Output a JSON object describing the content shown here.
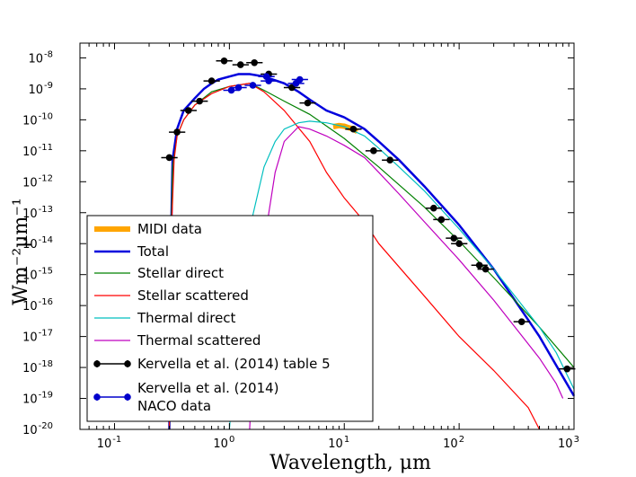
{
  "chart_data": {
    "type": "line",
    "xscale": "log",
    "yscale": "log",
    "xlim": [
      0.05,
      1000
    ],
    "ylim": [
      1e-20,
      3e-08
    ],
    "xlabel": "Wavelength, μm",
    "ylabel": "Wm⁻²μm⁻¹",
    "x_ticks": [
      {
        "value": 0.1,
        "mant": "10",
        "exp": "-1"
      },
      {
        "value": 1,
        "mant": "10",
        "exp": "0"
      },
      {
        "value": 10,
        "mant": "10",
        "exp": "1"
      },
      {
        "value": 100,
        "mant": "10",
        "exp": "2"
      },
      {
        "value": 1000,
        "mant": "10",
        "exp": "3"
      }
    ],
    "y_ticks": [
      {
        "value": 1e-08,
        "mant": "10",
        "exp": "-8"
      },
      {
        "value": 1e-09,
        "mant": "10",
        "exp": "-9"
      },
      {
        "value": 1e-10,
        "mant": "10",
        "exp": "-10"
      },
      {
        "value": 1e-11,
        "mant": "10",
        "exp": "-11"
      },
      {
        "value": 1e-12,
        "mant": "10",
        "exp": "-12"
      },
      {
        "value": 1e-13,
        "mant": "10",
        "exp": "-13"
      },
      {
        "value": 1e-14,
        "mant": "10",
        "exp": "-14"
      },
      {
        "value": 1e-15,
        "mant": "10",
        "exp": "-15"
      },
      {
        "value": 1e-16,
        "mant": "10",
        "exp": "-16"
      },
      {
        "value": 1e-17,
        "mant": "10",
        "exp": "-17"
      },
      {
        "value": 1e-18,
        "mant": "10",
        "exp": "-18"
      },
      {
        "value": 1e-19,
        "mant": "10",
        "exp": "-19"
      },
      {
        "value": 1e-20,
        "mant": "10",
        "exp": "-20"
      }
    ],
    "legend_position": "lower-left",
    "series": [
      {
        "name": "MIDI data",
        "color": "#ffa500",
        "kind": "band",
        "points": [
          [
            8,
            6e-11
          ],
          [
            9,
            6.5e-11
          ],
          [
            10,
            6.2e-11
          ],
          [
            11,
            5.5e-11
          ],
          [
            12,
            5e-11
          ],
          [
            13,
            4.2e-11
          ]
        ]
      },
      {
        "name": "Total",
        "color": "#0000dd",
        "kind": "line",
        "points": [
          [
            0.3,
            1e-20
          ],
          [
            0.31,
            1e-14
          ],
          [
            0.32,
            5e-12
          ],
          [
            0.35,
            5e-11
          ],
          [
            0.4,
            2e-10
          ],
          [
            0.5,
            5e-10
          ],
          [
            0.6,
            1e-09
          ],
          [
            0.7,
            1.5e-09
          ],
          [
            0.8,
            2e-09
          ],
          [
            1.0,
            2.5e-09
          ],
          [
            1.2,
            3e-09
          ],
          [
            1.5,
            3e-09
          ],
          [
            2.0,
            2.5e-09
          ],
          [
            3.0,
            1.5e-09
          ],
          [
            4.0,
            8e-10
          ],
          [
            5.0,
            4.5e-10
          ],
          [
            7.0,
            2e-10
          ],
          [
            10.0,
            1.2e-10
          ],
          [
            15.0,
            5e-11
          ],
          [
            20.0,
            2e-11
          ],
          [
            30.0,
            5e-12
          ],
          [
            50.0,
            7e-13
          ],
          [
            100.0,
            4e-14
          ],
          [
            200.0,
            1.5e-15
          ],
          [
            500.0,
            1e-17
          ],
          [
            1000.0,
            1.2e-19
          ]
        ]
      },
      {
        "name": "Stellar direct",
        "color": "#008000",
        "kind": "line",
        "points": [
          [
            0.3,
            1e-20
          ],
          [
            0.31,
            1e-14
          ],
          [
            0.32,
            3e-12
          ],
          [
            0.35,
            3e-11
          ],
          [
            0.4,
            1e-10
          ],
          [
            0.5,
            3e-10
          ],
          [
            0.7,
            8e-10
          ],
          [
            1.0,
            1.2e-09
          ],
          [
            1.5,
            1.5e-09
          ],
          [
            2.0,
            9e-10
          ],
          [
            3.0,
            4e-10
          ],
          [
            5.0,
            1.5e-10
          ],
          [
            10.0,
            2.5e-11
          ],
          [
            20.0,
            3e-12
          ],
          [
            50.0,
            1.5e-13
          ],
          [
            100.0,
            1.2e-14
          ],
          [
            200.0,
            8e-16
          ],
          [
            500.0,
            2e-17
          ],
          [
            1000.0,
            1e-18
          ]
        ]
      },
      {
        "name": "Stellar scattered",
        "color": "#ff0000",
        "kind": "line",
        "points": [
          [
            0.3,
            1e-20
          ],
          [
            0.31,
            1e-14
          ],
          [
            0.33,
            5e-12
          ],
          [
            0.35,
            3e-11
          ],
          [
            0.4,
            1e-10
          ],
          [
            0.5,
            3e-10
          ],
          [
            0.7,
            7e-10
          ],
          [
            1.0,
            1.2e-09
          ],
          [
            1.5,
            1.5e-09
          ],
          [
            2.0,
            8e-10
          ],
          [
            3.0,
            2e-10
          ],
          [
            5.0,
            2e-11
          ],
          [
            7.0,
            2e-12
          ],
          [
            10.0,
            3e-13
          ],
          [
            15.0,
            5e-14
          ],
          [
            20.0,
            1e-14
          ],
          [
            50.0,
            2e-16
          ],
          [
            100.0,
            1e-17
          ],
          [
            200.0,
            8e-19
          ],
          [
            400.0,
            5e-20
          ],
          [
            500.0,
            1e-20
          ]
        ]
      },
      {
        "name": "Thermal direct",
        "color": "#00bfbf",
        "kind": "line",
        "points": [
          [
            1.0,
            1e-20
          ],
          [
            1.2,
            1e-16
          ],
          [
            1.5,
            3e-14
          ],
          [
            2.0,
            3e-12
          ],
          [
            2.5,
            2e-11
          ],
          [
            3.0,
            5e-11
          ],
          [
            4.0,
            8e-11
          ],
          [
            5.0,
            9e-11
          ],
          [
            7.0,
            8e-11
          ],
          [
            10.0,
            6e-11
          ],
          [
            15.0,
            3e-11
          ],
          [
            20.0,
            1.2e-11
          ],
          [
            30.0,
            3e-12
          ],
          [
            50.0,
            5e-13
          ],
          [
            100.0,
            3e-14
          ],
          [
            200.0,
            1.5e-15
          ],
          [
            500.0,
            2e-17
          ],
          [
            700.0,
            3e-18
          ],
          [
            1000.0,
            2e-19
          ]
        ]
      },
      {
        "name": "Thermal scattered",
        "color": "#bf00bf",
        "kind": "line",
        "points": [
          [
            1.5,
            1e-20
          ],
          [
            1.7,
            1e-16
          ],
          [
            2.0,
            1e-14
          ],
          [
            2.5,
            2e-12
          ],
          [
            3.0,
            2e-11
          ],
          [
            4.0,
            6e-11
          ],
          [
            5.0,
            5e-11
          ],
          [
            7.0,
            3e-11
          ],
          [
            10.0,
            1.5e-11
          ],
          [
            15.0,
            6e-12
          ],
          [
            20.0,
            2e-12
          ],
          [
            30.0,
            4e-13
          ],
          [
            50.0,
            5e-14
          ],
          [
            100.0,
            3e-15
          ],
          [
            200.0,
            1.5e-16
          ],
          [
            500.0,
            2e-18
          ],
          [
            700.0,
            3e-19
          ],
          [
            800.0,
            1e-19
          ]
        ]
      },
      {
        "name": "Kervella et al. (2014) table 5",
        "color": "#000000",
        "kind": "errorbar",
        "points": [
          [
            0.3,
            6e-12
          ],
          [
            0.35,
            4e-11
          ],
          [
            0.44,
            2e-10
          ],
          [
            0.55,
            4e-10
          ],
          [
            0.7,
            1.8e-09
          ],
          [
            0.9,
            8e-09
          ],
          [
            1.25,
            6e-09
          ],
          [
            1.65,
            7e-09
          ],
          [
            2.2,
            3e-09
          ],
          [
            3.5,
            1.1e-09
          ],
          [
            4.8,
            3.5e-10
          ],
          [
            12.0,
            5e-11
          ],
          [
            18.0,
            1e-11
          ],
          [
            25.0,
            5e-12
          ],
          [
            60.0,
            1.4e-13
          ],
          [
            70.0,
            6e-14
          ],
          [
            90.0,
            1.5e-14
          ],
          [
            100.0,
            1e-14
          ],
          [
            150.0,
            2e-15
          ],
          [
            170.0,
            1.5e-15
          ],
          [
            350.0,
            3e-17
          ],
          [
            870.0,
            9e-19
          ]
        ]
      },
      {
        "name": "Kervella et al. (2014)\n NACO data",
        "color": "#0000cc",
        "kind": "errorbar",
        "points": [
          [
            1.04,
            9e-10
          ],
          [
            1.2,
            1.1e-09
          ],
          [
            1.6,
            1.3e-09
          ],
          [
            2.1,
            2.5e-09
          ],
          [
            2.2,
            1.8e-09
          ],
          [
            3.8,
            1.5e-09
          ],
          [
            4.1,
            2e-09
          ]
        ]
      }
    ],
    "legend_labels": [
      {
        "key": "MIDI data"
      },
      {
        "key": "Total"
      },
      {
        "key": "Stellar direct"
      },
      {
        "key": "Stellar scattered"
      },
      {
        "key": "Thermal direct"
      },
      {
        "key": "Thermal scattered"
      },
      {
        "key": "Kervella et al. (2014) table 5"
      },
      {
        "key": "Kervella et al. (2014)",
        "key2": " NACO data"
      }
    ]
  }
}
